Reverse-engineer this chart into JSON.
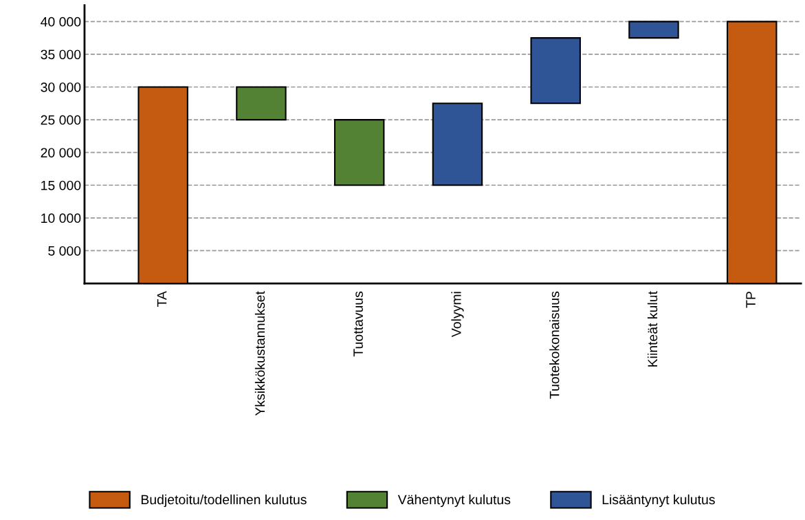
{
  "chart_data": {
    "type": "bar",
    "categories": [
      "TA",
      "Yksikkökustannukset",
      "Tuottavuus",
      "Volyymi",
      "Tuotekokonaisuus",
      "Kiinteät kulut",
      "TP"
    ],
    "stacked": true,
    "series": [
      {
        "name": "Budjetoitu/todellinen kulutus",
        "color": "#c55a11",
        "values": [
          30000,
          null,
          null,
          null,
          null,
          null,
          40000
        ],
        "base": [
          0,
          null,
          null,
          null,
          null,
          null,
          0
        ]
      },
      {
        "name": "Vähentynyt kulutus",
        "color": "#548235",
        "values": [
          null,
          5000,
          10000,
          null,
          null,
          null,
          null
        ],
        "base": [
          null,
          25000,
          15000,
          null,
          null,
          null,
          null
        ]
      },
      {
        "name": "Lisääntynyt kulutus",
        "color": "#2f5597",
        "values": [
          null,
          null,
          null,
          12500,
          10000,
          2500,
          null
        ],
        "base": [
          null,
          null,
          null,
          15000,
          27500,
          37500,
          null
        ]
      }
    ],
    "ylim": [
      0,
      42500
    ],
    "yticks": [
      {
        "value": 5000,
        "label": "5 000"
      },
      {
        "value": 10000,
        "label": "10 000"
      },
      {
        "value": 15000,
        "label": "15 000"
      },
      {
        "value": 20000,
        "label": "20 000"
      },
      {
        "value": 25000,
        "label": "25 000"
      },
      {
        "value": 30000,
        "label": "30 000"
      },
      {
        "value": 35000,
        "label": "35 000"
      },
      {
        "value": 40000,
        "label": "40 000"
      }
    ],
    "grid": "y",
    "legend": "bottom"
  }
}
